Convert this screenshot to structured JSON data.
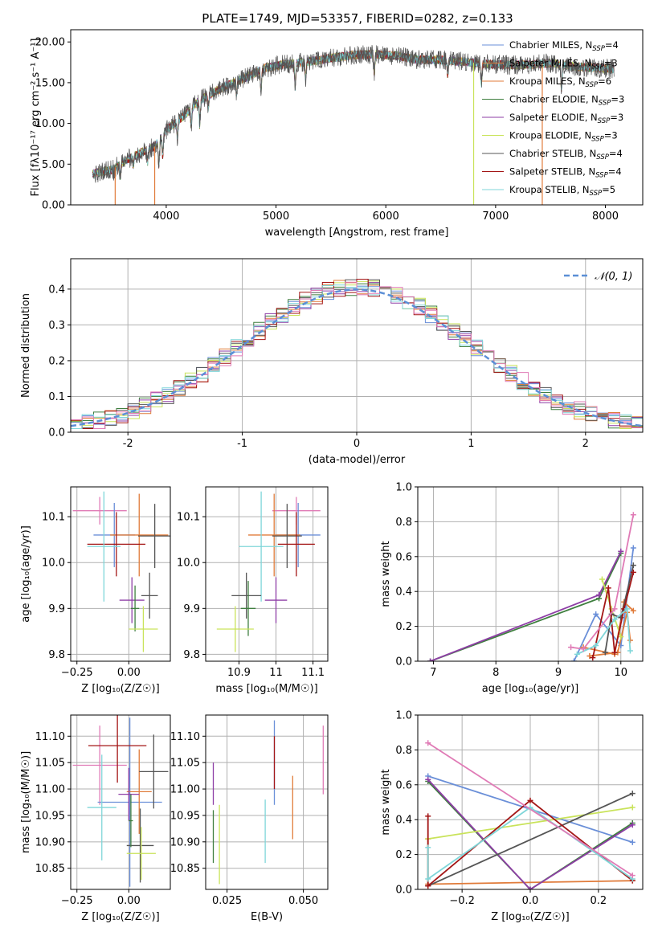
{
  "figure": {
    "title": "PLATE=1749, MJD=53357, FIBERID=0282, z=0.133"
  },
  "colors": {
    "Chabrier MILES": "#6a8fd8",
    "Salpeter MILES": "#e07b3a",
    "Kroupa MILES": "#e07b3a",
    "Chabrier ELODIE": "#3f7f3f",
    "Salpeter ELODIE": "#8e3ea6",
    "Kroupa ELODIE": "#c9e35a",
    "Chabrier STELIB": "#555555",
    "Salpeter STELIB": "#a31515",
    "Kroupa STELIB": "#7fd6d9",
    "pink": "#e07bb6",
    "gauss": "#5b8fd6"
  },
  "chart_data": [
    {
      "id": "spectrum",
      "type": "line",
      "title": "PLATE=1749, MJD=53357, FIBERID=0282, z=0.133",
      "xlabel": "wavelength [Angstrom, rest frame]",
      "ylabel": "Flux [fλ10⁻¹⁷ erg cm⁻² s⁻¹ A⁻¹]",
      "xlim": [
        3130,
        8340
      ],
      "ylim": [
        0,
        21.5
      ],
      "xticks": [
        4000,
        5000,
        6000,
        7000,
        8000
      ],
      "yticks": [
        0,
        5,
        10,
        15,
        20
      ],
      "grid": false,
      "legend_position": "top-right",
      "legend": [
        "Chabrier MILES, N_SSP=4",
        "Salpeter MILES, N_SSP=3",
        "Kroupa MILES, N_SSP=6",
        "Chabrier ELODIE, N_SSP=3",
        "Salpeter ELODIE, N_SSP=3",
        "Kroupa ELODIE, N_SSP=3",
        "Chabrier STELIB, N_SSP=4",
        "Salpeter STELIB, N_SSP=4",
        "Kroupa STELIB, N_SSP=5"
      ],
      "continuum": [
        [
          3330,
          3.8
        ],
        [
          3500,
          4.3
        ],
        [
          3700,
          6.0
        ],
        [
          3900,
          7.2
        ],
        [
          4000,
          9.2
        ],
        [
          4150,
          10.8
        ],
        [
          4300,
          12.8
        ],
        [
          4500,
          14.3
        ],
        [
          4700,
          15.5
        ],
        [
          4900,
          16.8
        ],
        [
          5100,
          17.3
        ],
        [
          5300,
          17.6
        ],
        [
          5500,
          18.0
        ],
        [
          5700,
          18.4
        ],
        [
          5900,
          18.5
        ],
        [
          6100,
          18.3
        ],
        [
          6300,
          17.8
        ],
        [
          6500,
          17.8
        ],
        [
          6700,
          17.6
        ],
        [
          6900,
          17.3
        ],
        [
          7100,
          17.2
        ],
        [
          7300,
          17.2
        ],
        [
          7500,
          17.4
        ],
        [
          7700,
          17.0
        ],
        [
          7900,
          16.8
        ],
        [
          8080,
          16.7
        ]
      ],
      "absorption_lines": [
        [
          3530,
          0.8
        ],
        [
          3580,
          1.5
        ],
        [
          3700,
          1.2
        ],
        [
          3830,
          1.5
        ],
        [
          3933,
          3.0
        ],
        [
          3968,
          2.5
        ],
        [
          4102,
          2.0
        ],
        [
          4227,
          2.0
        ],
        [
          4305,
          3.0
        ],
        [
          4383,
          1.5
        ],
        [
          4640,
          1.5
        ],
        [
          4863,
          2.5
        ],
        [
          5175,
          3.0
        ],
        [
          5270,
          2.0
        ],
        [
          5895,
          2.5
        ],
        [
          6563,
          1.8
        ],
        [
          6870,
          2.5
        ],
        [
          7600,
          3.0
        ]
      ],
      "drop_lines": [
        [
          3535,
          0
        ],
        [
          3895,
          0
        ],
        [
          6800,
          0
        ],
        [
          7425,
          0
        ]
      ]
    },
    {
      "id": "residuals",
      "type": "line",
      "xlabel": "(data-model)/error",
      "ylabel": "Normed distribution",
      "xlim": [
        -2.5,
        2.5
      ],
      "ylim": [
        0,
        0.485
      ],
      "xticks": [
        -2,
        -1,
        0,
        1,
        2
      ],
      "yticks": [
        0.0,
        0.1,
        0.2,
        0.3,
        0.4
      ],
      "grid": true,
      "legend_position": "top-right",
      "legend": [
        "𝒩(0, 1)"
      ],
      "bin_width": 0.1
    },
    {
      "id": "age_vs_Z",
      "type": "scatter",
      "xlabel": "Z [log₁₀(Z/Z☉)]",
      "ylabel": "age  [log₁₀(age/yr)]",
      "xlim": [
        -0.28,
        0.2
      ],
      "ylim": [
        9.785,
        10.165
      ],
      "xticks": [
        -0.25,
        0.0
      ],
      "xticklabels": [
        "−0.25",
        "0.00"
      ],
      "yticks": [
        9.8,
        9.9,
        10.0,
        10.1
      ],
      "grid": true,
      "points": [
        {
          "c": "#e07bb6",
          "x": -0.14,
          "xe": 0.13,
          "y": 10.113,
          "ye": 0.03
        },
        {
          "c": "#6a8fd8",
          "x": -0.07,
          "xe": 0.1,
          "y": 10.06,
          "ye": 0.07
        },
        {
          "c": "#e07b3a",
          "x": 0.05,
          "xe": 0.14,
          "y": 10.06,
          "ye": 0.09
        },
        {
          "c": "#555555",
          "x": 0.125,
          "xe": 0.08,
          "y": 10.058,
          "ye": 0.07
        },
        {
          "c": "#a31515",
          "x": -0.06,
          "xe": 0.14,
          "y": 10.04,
          "ye": 0.07
        },
        {
          "c": "#7fd6d9",
          "x": -0.12,
          "xe": 0.08,
          "y": 10.035,
          "ye": 0.12
        },
        {
          "c": "#8e3ea6",
          "x": 0.015,
          "xe": 0.06,
          "y": 9.918,
          "ye": 0.05
        },
        {
          "c": "#555555",
          "x": 0.1,
          "xe": 0.04,
          "y": 9.928,
          "ye": 0.05
        },
        {
          "c": "#3f7f3f",
          "x": 0.03,
          "xe": 0.02,
          "y": 9.9,
          "ye": 0.05
        },
        {
          "c": "#c9e35a",
          "x": 0.07,
          "xe": 0.07,
          "y": 9.855,
          "ye": 0.05
        }
      ]
    },
    {
      "id": "age_vs_mass",
      "type": "scatter",
      "xlabel": "mass [log₁₀(M/M☉)]",
      "xlim": [
        10.81,
        11.14
      ],
      "ylim": [
        9.785,
        10.165
      ],
      "xticks": [
        10.9,
        11.0,
        11.1
      ],
      "yticks": [
        9.8,
        9.9,
        10.0,
        10.1
      ],
      "grid": true,
      "points": [
        {
          "c": "#e07bb6",
          "x": 11.055,
          "xe": 0.065,
          "y": 10.113,
          "ye": 0.03
        },
        {
          "c": "#6a8fd8",
          "x": 11.06,
          "xe": 0.06,
          "y": 10.06,
          "ye": 0.07
        },
        {
          "c": "#e07b3a",
          "x": 10.995,
          "xe": 0.07,
          "y": 10.06,
          "ye": 0.09
        },
        {
          "c": "#555555",
          "x": 11.03,
          "xe": 0.04,
          "y": 10.058,
          "ye": 0.07
        },
        {
          "c": "#a31515",
          "x": 11.055,
          "xe": 0.05,
          "y": 10.04,
          "ye": 0.07
        },
        {
          "c": "#7fd6d9",
          "x": 10.96,
          "xe": 0.06,
          "y": 10.035,
          "ye": 0.12
        },
        {
          "c": "#8e3ea6",
          "x": 11.0,
          "xe": 0.03,
          "y": 9.918,
          "ye": 0.05
        },
        {
          "c": "#555555",
          "x": 10.92,
          "xe": 0.04,
          "y": 9.928,
          "ye": 0.05
        },
        {
          "c": "#3f7f3f",
          "x": 10.925,
          "xe": 0.02,
          "y": 9.9,
          "ye": 0.06
        },
        {
          "c": "#c9e35a",
          "x": 10.89,
          "xe": 0.05,
          "y": 9.855,
          "ye": 0.05
        }
      ]
    },
    {
      "id": "weight_vs_age",
      "type": "line",
      "xlabel": "age  [log₁₀(age/yr)]",
      "ylabel": "mass weight",
      "xlim": [
        6.75,
        10.35
      ],
      "ylim": [
        0,
        1.0
      ],
      "xticks": [
        7,
        8,
        9,
        10
      ],
      "yticks": [
        0.0,
        0.2,
        0.4,
        0.6,
        0.8,
        1.0
      ],
      "grid": true,
      "series": [
        {
          "c": "#6a8fd8",
          "pts": [
            [
              9.25,
              0.0
            ],
            [
              9.6,
              0.27
            ],
            [
              10.0,
              0.09
            ],
            [
              10.2,
              0.65
            ]
          ]
        },
        {
          "c": "#e07b3a",
          "pts": [
            [
              9.4,
              0.08
            ],
            [
              9.9,
              0.04
            ],
            [
              10.05,
              0.34
            ],
            [
              10.2,
              0.29
            ]
          ]
        },
        {
          "c": "#e07b3a",
          "pts": [
            [
              9.5,
              0.03
            ],
            [
              9.95,
              0.05
            ],
            [
              10.1,
              0.28
            ],
            [
              10.15,
              0.12
            ]
          ]
        },
        {
          "c": "#3f7f3f",
          "pts": [
            [
              6.95,
              0.0
            ],
            [
              9.65,
              0.36
            ],
            [
              10.0,
              0.62
            ]
          ]
        },
        {
          "c": "#8e3ea6",
          "pts": [
            [
              6.95,
              0.0
            ],
            [
              9.65,
              0.38
            ],
            [
              10.0,
              0.63
            ]
          ]
        },
        {
          "c": "#c9e35a",
          "pts": [
            [
              9.7,
              0.47
            ],
            [
              9.85,
              0.3
            ],
            [
              10.0,
              0.14
            ]
          ]
        },
        {
          "c": "#555555",
          "pts": [
            [
              9.75,
              0.05
            ],
            [
              9.85,
              0.27
            ],
            [
              10.0,
              0.25
            ],
            [
              10.2,
              0.55
            ]
          ]
        },
        {
          "c": "#a31515",
          "pts": [
            [
              9.55,
              0.02
            ],
            [
              9.8,
              0.42
            ],
            [
              9.9,
              0.05
            ],
            [
              10.05,
              0.3
            ],
            [
              10.2,
              0.51
            ]
          ]
        },
        {
          "c": "#7fd6d9",
          "pts": [
            [
              9.3,
              0.04
            ],
            [
              9.6,
              0.09
            ],
            [
              9.9,
              0.24
            ],
            [
              10.1,
              0.3
            ],
            [
              10.15,
              0.06
            ]
          ]
        },
        {
          "c": "#e07bb6",
          "pts": [
            [
              9.2,
              0.08
            ],
            [
              9.4,
              0.07
            ],
            [
              9.9,
              0.3
            ],
            [
              10.2,
              0.84
            ]
          ]
        }
      ]
    },
    {
      "id": "mass_vs_Z",
      "type": "scatter",
      "xlabel": "Z [log₁₀(Z/Z☉)]",
      "ylabel": "mass [log₁₀(M/M☉)]",
      "xlim": [
        -0.28,
        0.2
      ],
      "ylim": [
        10.81,
        11.14
      ],
      "xticks": [
        -0.25,
        0.0
      ],
      "xticklabels": [
        "−0.25",
        "0.00"
      ],
      "yticks": [
        10.85,
        10.9,
        10.95,
        11.0,
        11.05,
        11.1
      ],
      "grid": true,
      "points": [
        {
          "c": "#e07bb6",
          "x": -0.14,
          "xe": 0.13,
          "y": 11.045,
          "ye": 0.075
        },
        {
          "c": "#6a8fd8",
          "x": 0.005,
          "xe": 0.155,
          "y": 10.975,
          "ye": 0.16
        },
        {
          "c": "#e07b3a",
          "x": 0.05,
          "xe": 0.06,
          "y": 10.995,
          "ye": 0.08
        },
        {
          "c": "#555555",
          "x": 0.12,
          "xe": 0.07,
          "y": 11.033,
          "ye": 0.07
        },
        {
          "c": "#a31515",
          "x": -0.055,
          "xe": 0.14,
          "y": 11.082,
          "ye": 0.07
        },
        {
          "c": "#7fd6d9",
          "x": -0.13,
          "xe": 0.07,
          "y": 10.965,
          "ye": 0.1
        },
        {
          "c": "#8e3ea6",
          "x": 0.0,
          "xe": 0.05,
          "y": 10.99,
          "ye": 0.05
        },
        {
          "c": "#555555",
          "x": 0.055,
          "xe": 0.065,
          "y": 10.893,
          "ye": 0.07
        },
        {
          "c": "#3f7f3f",
          "x": 0.01,
          "xe": 0.01,
          "y": 10.94,
          "ye": 0.05
        },
        {
          "c": "#c9e35a",
          "x": 0.06,
          "xe": 0.07,
          "y": 10.878,
          "ye": 0.05
        }
      ]
    },
    {
      "id": "mass_vs_EBV",
      "type": "scatter",
      "xlabel": "E(B-V)",
      "xlim": [
        0.018,
        0.058
      ],
      "ylim": [
        10.81,
        11.14
      ],
      "xticks": [
        0.025,
        0.05
      ],
      "xticklabels": [
        "0.025",
        "0.050"
      ],
      "yticks": [
        10.85,
        10.9,
        10.95,
        11.0,
        11.05,
        11.1
      ],
      "grid": true,
      "points": [
        {
          "c": "#8e3ea6",
          "x": 0.0205,
          "y": 11.01,
          "ye": 0.04
        },
        {
          "c": "#3f7f3f",
          "x": 0.0205,
          "y": 10.91,
          "ye": 0.05
        },
        {
          "c": "#c9e35a",
          "x": 0.0225,
          "y": 10.895,
          "ye": 0.075
        },
        {
          "c": "#7fd6d9",
          "x": 0.0375,
          "y": 10.92,
          "ye": 0.06
        },
        {
          "c": "#6a8fd8",
          "x": 0.0405,
          "y": 11.05,
          "ye": 0.08
        },
        {
          "c": "#a31515",
          "x": 0.0405,
          "y": 11.05,
          "ye": 0.05
        },
        {
          "c": "#e07b3a",
          "x": 0.0465,
          "y": 10.965,
          "ye": 0.06
        },
        {
          "c": "#e07bb6",
          "x": 0.0565,
          "y": 11.055,
          "ye": 0.065
        }
      ]
    },
    {
      "id": "weight_vs_Z",
      "type": "line",
      "xlabel": "Z [log₁₀(Z/Z☉)]",
      "ylabel": "mass weight",
      "xlim": [
        -0.33,
        0.33
      ],
      "ylim": [
        0,
        1.0
      ],
      "xticks": [
        -0.2,
        0.0,
        0.2
      ],
      "xticklabels": [
        "−0.2",
        "0.0",
        "0.2"
      ],
      "yticks": [
        0.0,
        0.2,
        0.4,
        0.6,
        0.8,
        1.0
      ],
      "grid": true,
      "series": [
        {
          "c": "#6a8fd8",
          "pts": [
            [
              -0.3,
              0.65
            ],
            [
              0.3,
              0.27
            ]
          ]
        },
        {
          "c": "#e07b3a",
          "pts": [
            [
              -0.3,
              0.29
            ],
            [
              -0.3,
              0.03
            ],
            [
              0.3,
              0.05
            ]
          ]
        },
        {
          "c": "#3f7f3f",
          "pts": [
            [
              -0.3,
              0.62
            ],
            [
              0.0,
              0.0
            ],
            [
              0.3,
              0.38
            ]
          ]
        },
        {
          "c": "#8e3ea6",
          "pts": [
            [
              -0.3,
              0.63
            ],
            [
              0.0,
              0.0
            ],
            [
              0.3,
              0.37
            ]
          ]
        },
        {
          "c": "#c9e35a",
          "pts": [
            [
              -0.3,
              0.29
            ],
            [
              0.3,
              0.47
            ]
          ]
        },
        {
          "c": "#555555",
          "pts": [
            [
              -0.3,
              0.02
            ],
            [
              0.3,
              0.55
            ]
          ]
        },
        {
          "c": "#a31515",
          "pts": [
            [
              -0.3,
              0.42
            ],
            [
              -0.3,
              0.02
            ],
            [
              0.0,
              0.51
            ],
            [
              0.3,
              0.05
            ]
          ]
        },
        {
          "c": "#7fd6d9",
          "pts": [
            [
              -0.3,
              0.24
            ],
            [
              -0.3,
              0.06
            ],
            [
              0.0,
              0.47
            ],
            [
              0.3,
              0.06
            ]
          ]
        },
        {
          "c": "#e07bb6",
          "pts": [
            [
              -0.3,
              0.84
            ],
            [
              0.3,
              0.08
            ]
          ]
        }
      ]
    }
  ]
}
